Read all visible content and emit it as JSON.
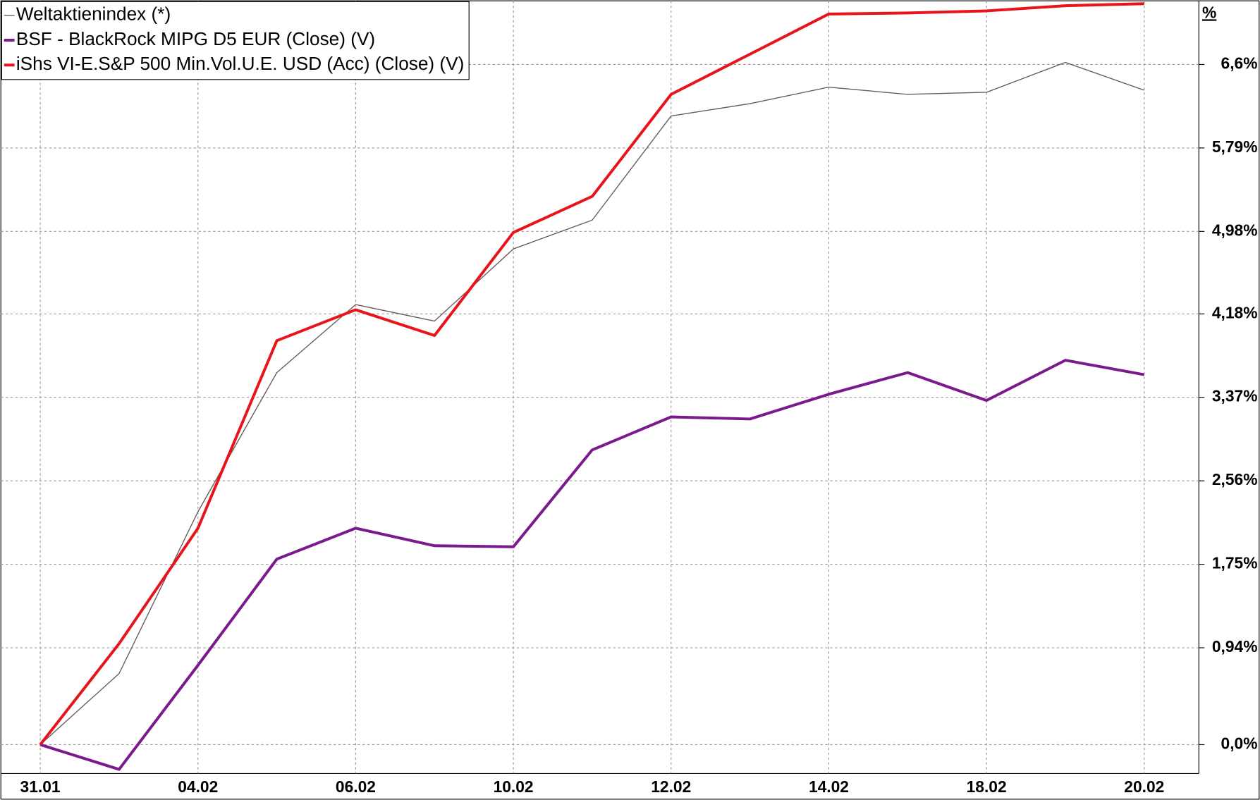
{
  "chart_data": {
    "type": "line",
    "unit_label": "%",
    "categories": [
      "31.01",
      null,
      "04.02",
      null,
      "06.02",
      null,
      "10.02",
      null,
      "12.02",
      null,
      "14.02",
      null,
      "18.02",
      null,
      "20.02"
    ],
    "series": [
      {
        "name": "Weltaktienindex (*)",
        "color": "#6b5a5a",
        "stroke_width": 1.2,
        "values": [
          0,
          0.69,
          2.26,
          3.61,
          4.27,
          4.11,
          4.81,
          5.09,
          6.1,
          6.22,
          6.38,
          6.31,
          6.33,
          6.62,
          6.35
        ]
      },
      {
        "name": "BSF - BlackRock MIPG D5 EUR (Close) (V)",
        "color": "#7a1a8c",
        "stroke_width": 3.5,
        "values": [
          0,
          -0.24,
          0.77,
          1.8,
          2.1,
          1.93,
          1.92,
          2.86,
          3.18,
          3.16,
          3.4,
          3.61,
          3.34,
          3.73,
          3.59
        ]
      },
      {
        "name": "iShs VI-E.S&P 500 Min.Vol.U.E. USD (Acc) (Close) (V)",
        "color": "#e8141c",
        "stroke_width": 3.5,
        "values": [
          0,
          0.98,
          2.1,
          3.92,
          4.22,
          3.97,
          4.97,
          5.32,
          6.31,
          6.7,
          7.09,
          7.1,
          7.12,
          7.17,
          7.19
        ]
      }
    ],
    "ylim": [
      -0.28,
      7.21
    ],
    "yticks": [
      {
        "value": 0,
        "label": "0,0%"
      },
      {
        "value": 0.94,
        "label": "0,94%"
      },
      {
        "value": 1.75,
        "label": "1,75%"
      },
      {
        "value": 2.56,
        "label": "2,56%"
      },
      {
        "value": 3.37,
        "label": "3,37%"
      },
      {
        "value": 4.18,
        "label": "4,18%"
      },
      {
        "value": 4.98,
        "label": "4,98%"
      },
      {
        "value": 5.79,
        "label": "5,79%"
      },
      {
        "value": 6.6,
        "label": "6,6%"
      }
    ],
    "grid": true,
    "legend": "top-left"
  }
}
